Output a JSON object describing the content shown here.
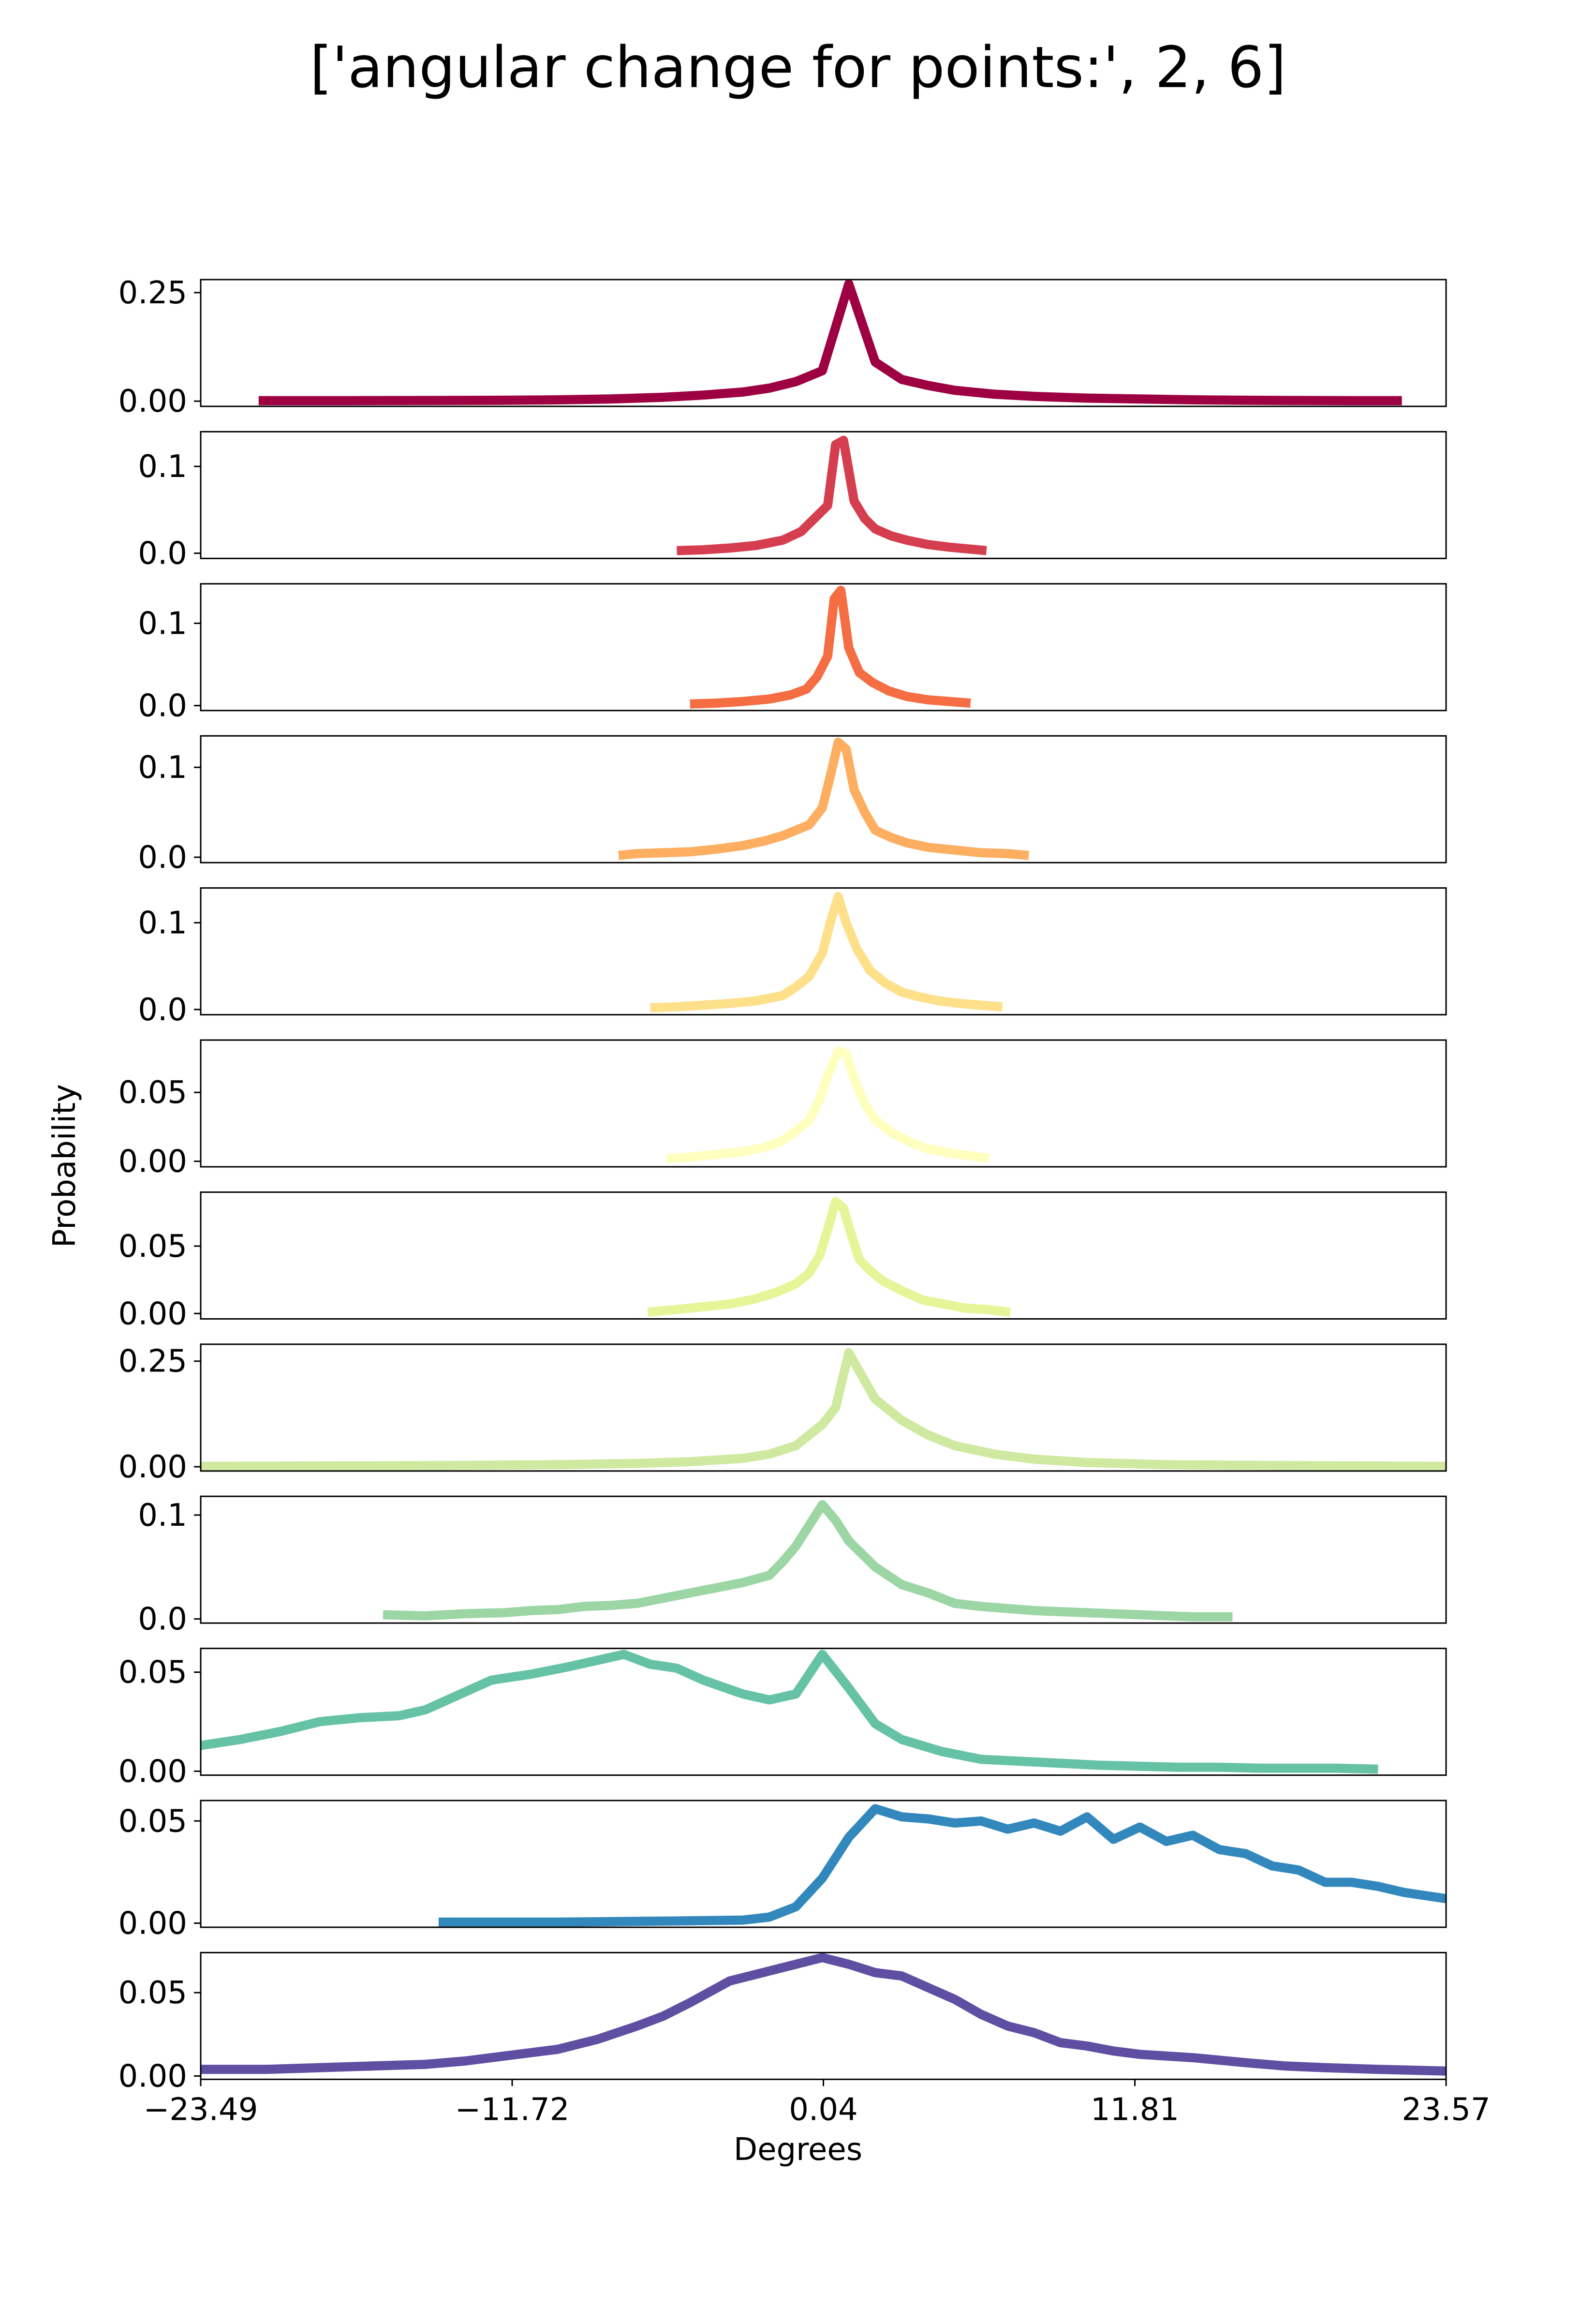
{
  "chart_data": {
    "type": "line",
    "title": "['angular change for points:', 2, 6]",
    "xlabel": "Degrees",
    "ylabel": "Probability",
    "xlim": [
      -23.49,
      23.57
    ],
    "x_ticks": [
      "−23.49",
      "−11.72",
      "0.04",
      "11.81",
      "23.57"
    ],
    "x_tick_values": [
      -23.49,
      -11.72,
      0.04,
      11.81,
      23.57
    ],
    "grid": false,
    "panels": [
      {
        "color": "#9e0142",
        "ylim": [
          -0.012,
          0.28
        ],
        "y_ticks": [
          0.0,
          0.25
        ],
        "y_tick_labels": [
          "0.00",
          "0.25"
        ],
        "x": [
          -21.3,
          -18.0,
          -15.0,
          -12.0,
          -10.0,
          -8.0,
          -6.0,
          -4.5,
          -3.0,
          -2.0,
          -1.0,
          0.0,
          1.0,
          2.0,
          3.0,
          4.0,
          5.0,
          6.5,
          8.0,
          10.0,
          12.0,
          14.0,
          16.0,
          18.0,
          20.0,
          21.9
        ],
        "values": [
          0.001,
          0.001,
          0.0015,
          0.002,
          0.003,
          0.005,
          0.009,
          0.014,
          0.021,
          0.03,
          0.045,
          0.07,
          0.27,
          0.09,
          0.05,
          0.036,
          0.025,
          0.016,
          0.011,
          0.007,
          0.005,
          0.003,
          0.002,
          0.0015,
          0.001,
          0.001
        ]
      },
      {
        "color": "#d53e4f",
        "ylim": [
          -0.006,
          0.14
        ],
        "y_ticks": [
          0.0,
          0.1
        ],
        "y_tick_labels": [
          "0.0",
          "0.1"
        ],
        "x": [
          -5.5,
          -4.5,
          -3.5,
          -2.5,
          -1.5,
          -0.8,
          -0.3,
          0.2,
          0.5,
          0.8,
          1.2,
          1.6,
          2.0,
          2.6,
          3.2,
          4.0,
          4.8,
          5.5,
          6.2
        ],
        "values": [
          0.003,
          0.004,
          0.006,
          0.009,
          0.015,
          0.025,
          0.04,
          0.055,
          0.125,
          0.13,
          0.06,
          0.04,
          0.028,
          0.02,
          0.015,
          0.01,
          0.007,
          0.005,
          0.003
        ]
      },
      {
        "color": "#f46d43",
        "ylim": [
          -0.006,
          0.148
        ],
        "y_ticks": [
          0.0,
          0.1
        ],
        "y_tick_labels": [
          "0.0",
          "0.1"
        ],
        "x": [
          -5.0,
          -4.0,
          -3.0,
          -2.0,
          -1.2,
          -0.6,
          -0.2,
          0.2,
          0.45,
          0.7,
          1.0,
          1.4,
          1.9,
          2.5,
          3.2,
          4.0,
          4.8,
          5.6
        ],
        "values": [
          0.002,
          0.003,
          0.005,
          0.008,
          0.013,
          0.02,
          0.035,
          0.06,
          0.13,
          0.14,
          0.07,
          0.04,
          0.028,
          0.018,
          0.011,
          0.007,
          0.005,
          0.003
        ]
      },
      {
        "color": "#fdae61",
        "ylim": [
          -0.006,
          0.135
        ],
        "y_ticks": [
          0.0,
          0.1
        ],
        "y_tick_labels": [
          "0.0",
          "0.1"
        ],
        "x": [
          -7.7,
          -7.0,
          -6.0,
          -5.0,
          -4.0,
          -3.0,
          -2.2,
          -1.5,
          -1.0,
          -0.5,
          0.0,
          0.3,
          0.6,
          0.9,
          1.2,
          1.6,
          2.0,
          2.6,
          3.2,
          4.0,
          5.0,
          6.0,
          7.0,
          7.8
        ],
        "values": [
          0.002,
          0.004,
          0.005,
          0.006,
          0.009,
          0.013,
          0.018,
          0.024,
          0.03,
          0.036,
          0.055,
          0.09,
          0.128,
          0.12,
          0.075,
          0.05,
          0.03,
          0.022,
          0.016,
          0.011,
          0.008,
          0.005,
          0.004,
          0.002
        ]
      },
      {
        "color": "#fee08b",
        "ylim": [
          -0.006,
          0.14
        ],
        "y_ticks": [
          0.0,
          0.1
        ],
        "y_tick_labels": [
          "0.0",
          "0.1"
        ],
        "x": [
          -6.5,
          -5.5,
          -4.5,
          -3.5,
          -2.5,
          -1.5,
          -1.0,
          -0.5,
          0.0,
          0.3,
          0.6,
          0.9,
          1.3,
          1.8,
          2.4,
          3.0,
          3.6,
          4.4,
          5.2,
          6.0,
          6.8
        ],
        "values": [
          0.002,
          0.003,
          0.005,
          0.007,
          0.01,
          0.016,
          0.026,
          0.038,
          0.065,
          0.1,
          0.13,
          0.1,
          0.07,
          0.045,
          0.03,
          0.02,
          0.015,
          0.01,
          0.007,
          0.005,
          0.003
        ]
      },
      {
        "color": "#ffffbf",
        "ylim": [
          -0.004,
          0.088
        ],
        "y_ticks": [
          0.0,
          0.05
        ],
        "y_tick_labels": [
          "0.00",
          "0.05"
        ],
        "x": [
          -5.9,
          -5.0,
          -4.0,
          -3.0,
          -2.2,
          -1.5,
          -1.0,
          -0.5,
          -0.1,
          0.2,
          0.6,
          0.9,
          1.2,
          1.6,
          2.0,
          2.6,
          3.3,
          4.0,
          4.8,
          5.6,
          6.3
        ],
        "values": [
          0.002,
          0.003,
          0.005,
          0.007,
          0.01,
          0.015,
          0.022,
          0.03,
          0.045,
          0.062,
          0.08,
          0.078,
          0.06,
          0.042,
          0.03,
          0.021,
          0.014,
          0.009,
          0.006,
          0.004,
          0.002
        ]
      },
      {
        "color": "#e6f598",
        "ylim": [
          -0.004,
          0.09
        ],
        "y_ticks": [
          0.0,
          0.05
        ],
        "y_tick_labels": [
          "0.00",
          "0.05"
        ],
        "x": [
          -6.6,
          -5.5,
          -4.5,
          -3.5,
          -2.5,
          -1.7,
          -1.0,
          -0.5,
          -0.1,
          0.2,
          0.5,
          0.8,
          1.1,
          1.4,
          1.8,
          2.3,
          3.0,
          3.8,
          4.6,
          5.4,
          6.2,
          7.1
        ],
        "values": [
          0.001,
          0.003,
          0.005,
          0.007,
          0.011,
          0.016,
          0.022,
          0.03,
          0.043,
          0.062,
          0.083,
          0.078,
          0.058,
          0.04,
          0.032,
          0.024,
          0.017,
          0.01,
          0.007,
          0.004,
          0.003,
          0.001
        ]
      },
      {
        "color": "#d0e9a1",
        "ylim": [
          -0.01,
          0.29
        ],
        "y_ticks": [
          0.0,
          0.25
        ],
        "y_tick_labels": [
          "0.00",
          "0.25"
        ],
        "x": [
          -23.49,
          -18.0,
          -14.0,
          -10.0,
          -7.0,
          -5.0,
          -3.0,
          -2.0,
          -1.0,
          0.0,
          0.5,
          1.0,
          2.0,
          3.0,
          4.0,
          5.0,
          6.5,
          8.0,
          10.0,
          13.0,
          17.0,
          20.0,
          23.57
        ],
        "values": [
          0.001,
          0.002,
          0.003,
          0.005,
          0.008,
          0.012,
          0.02,
          0.03,
          0.05,
          0.1,
          0.14,
          0.27,
          0.16,
          0.11,
          0.075,
          0.05,
          0.03,
          0.018,
          0.01,
          0.005,
          0.003,
          0.002,
          0.001
        ]
      },
      {
        "color": "#9cd6a4",
        "ylim": [
          -0.004,
          0.118
        ],
        "y_ticks": [
          0.0,
          0.1
        ],
        "y_tick_labels": [
          "0.0",
          "0.1"
        ],
        "x": [
          -16.6,
          -15.0,
          -13.5,
          -12.0,
          -11.0,
          -10.0,
          -9.0,
          -8.0,
          -7.0,
          -6.0,
          -5.0,
          -4.0,
          -3.0,
          -2.0,
          -1.5,
          -1.0,
          0.0,
          0.5,
          1.0,
          2.0,
          3.0,
          4.0,
          5.0,
          6.0,
          7.0,
          8.0,
          9.0,
          10.0,
          11.0,
          12.0,
          13.0,
          14.0,
          15.5
        ],
        "values": [
          0.004,
          0.003,
          0.005,
          0.006,
          0.008,
          0.009,
          0.012,
          0.013,
          0.015,
          0.02,
          0.025,
          0.03,
          0.035,
          0.042,
          0.055,
          0.07,
          0.11,
          0.095,
          0.075,
          0.05,
          0.033,
          0.025,
          0.015,
          0.012,
          0.01,
          0.008,
          0.007,
          0.006,
          0.005,
          0.004,
          0.003,
          0.002,
          0.002
        ]
      },
      {
        "color": "#66c2a5",
        "ylim": [
          -0.002,
          0.062
        ],
        "y_ticks": [
          0.0,
          0.05
        ],
        "y_tick_labels": [
          "0.00",
          "0.05"
        ],
        "x": [
          -23.49,
          -22.0,
          -20.5,
          -19.0,
          -17.5,
          -16.0,
          -15.0,
          -14.0,
          -12.5,
          -11.0,
          -9.5,
          -8.5,
          -7.5,
          -6.5,
          -5.5,
          -4.5,
          -3.0,
          -2.0,
          -1.0,
          0.0,
          1.0,
          2.0,
          3.0,
          4.5,
          6.0,
          7.5,
          9.0,
          10.5,
          12.0,
          13.5,
          15.0,
          16.5,
          18.0,
          19.5,
          21.0
        ],
        "values": [
          0.013,
          0.016,
          0.02,
          0.025,
          0.027,
          0.028,
          0.031,
          0.037,
          0.046,
          0.049,
          0.053,
          0.056,
          0.059,
          0.054,
          0.052,
          0.046,
          0.039,
          0.036,
          0.039,
          0.059,
          0.042,
          0.024,
          0.016,
          0.01,
          0.006,
          0.005,
          0.004,
          0.003,
          0.0025,
          0.002,
          0.002,
          0.0015,
          0.0015,
          0.0015,
          0.001
        ]
      },
      {
        "color": "#3288bd",
        "ylim": [
          -0.002,
          0.06
        ],
        "y_ticks": [
          0.0,
          0.05
        ],
        "y_tick_labels": [
          "0.00",
          "0.05"
        ],
        "x": [
          -14.5,
          -10.0,
          -6.0,
          -3.0,
          -2.0,
          -1.0,
          0.0,
          1.0,
          2.0,
          3.0,
          4.0,
          5.0,
          6.0,
          7.0,
          8.0,
          9.0,
          10.0,
          11.0,
          12.0,
          13.0,
          14.0,
          15.0,
          16.0,
          17.0,
          18.0,
          19.0,
          20.0,
          21.0,
          22.0,
          23.57
        ],
        "values": [
          0.0005,
          0.0005,
          0.001,
          0.0015,
          0.003,
          0.008,
          0.022,
          0.042,
          0.056,
          0.052,
          0.051,
          0.049,
          0.05,
          0.046,
          0.049,
          0.045,
          0.052,
          0.041,
          0.047,
          0.04,
          0.043,
          0.036,
          0.034,
          0.028,
          0.026,
          0.02,
          0.02,
          0.018,
          0.015,
          0.012
        ]
      },
      {
        "color": "#5e4fa2",
        "ylim": [
          -0.002,
          0.074
        ],
        "y_ticks": [
          0.0,
          0.05
        ],
        "y_tick_labels": [
          "0.00",
          "0.05"
        ],
        "x": [
          -23.49,
          -21.0,
          -19.0,
          -17.0,
          -15.0,
          -13.5,
          -12.0,
          -10.0,
          -8.5,
          -7.0,
          -6.0,
          -5.0,
          -3.5,
          -2.0,
          -1.0,
          0.0,
          1.0,
          2.0,
          3.0,
          4.0,
          5.0,
          6.0,
          7.0,
          8.0,
          9.0,
          10.0,
          11.0,
          12.0,
          14.0,
          16.0,
          17.5,
          19.0,
          21.0,
          23.57
        ],
        "values": [
          0.004,
          0.004,
          0.005,
          0.006,
          0.007,
          0.009,
          0.012,
          0.016,
          0.022,
          0.03,
          0.036,
          0.044,
          0.057,
          0.063,
          0.067,
          0.071,
          0.067,
          0.062,
          0.06,
          0.053,
          0.046,
          0.037,
          0.03,
          0.026,
          0.02,
          0.018,
          0.015,
          0.013,
          0.011,
          0.008,
          0.006,
          0.005,
          0.004,
          0.003
        ]
      }
    ]
  }
}
